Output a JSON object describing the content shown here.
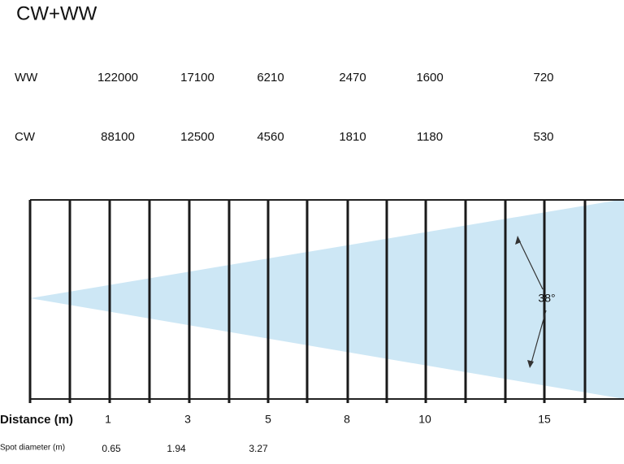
{
  "header": {
    "title": "CW+WW"
  },
  "table": {
    "rows": [
      {
        "label": "WW",
        "values": [
          122000,
          17100,
          6210,
          2470,
          1600,
          720
        ]
      },
      {
        "label": "CW",
        "values": [
          88100,
          12500,
          4560,
          1810,
          1180,
          530
        ]
      }
    ]
  },
  "diagram": {
    "angle": "38°"
  },
  "distance": {
    "label": "Distance (m)",
    "values": [
      1,
      3,
      5,
      8,
      10,
      15
    ]
  },
  "spot": {
    "label": "Spot diameter (m)",
    "values": [
      0.65,
      1.94,
      3.27
    ]
  }
}
